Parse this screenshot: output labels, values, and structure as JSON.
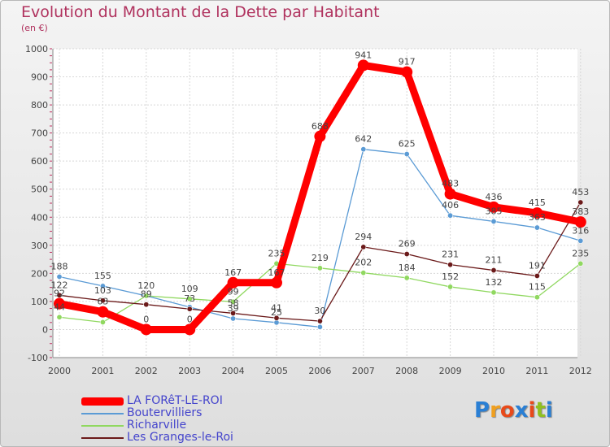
{
  "chart_data": {
    "type": "line",
    "title": "Evolution du Montant de la Dette par Habitant",
    "subtitle": "(en €)",
    "xlabel": "",
    "ylabel": "",
    "categories": [
      "2000",
      "2001",
      "2002",
      "2003",
      "2004",
      "2005",
      "2006",
      "2007",
      "2008",
      "2009",
      "2010",
      "2011",
      "2012"
    ],
    "ylim": [
      -100,
      1000
    ],
    "yticks": [
      "-100",
      "0",
      "100",
      "200",
      "300",
      "400",
      "500",
      "600",
      "700",
      "800",
      "900",
      "1000"
    ],
    "series": [
      {
        "name": "LA FORêT-LE-ROI",
        "color": "#ff0000",
        "values": [
          92,
          63,
          0,
          0,
          167,
          167,
          688,
          941,
          917,
          483,
          436,
          415,
          383
        ],
        "labels": [
          "92",
          "63",
          "0",
          "0",
          "167",
          "167",
          "688",
          "941",
          "917",
          "483",
          "436",
          "415",
          "383"
        ]
      },
      {
        "name": "Boutervilliers",
        "color": "#5b9bd5",
        "values": [
          188,
          155,
          120,
          80,
          39,
          25,
          9,
          642,
          625,
          406,
          385,
          363,
          316
        ],
        "labels": [
          "188",
          "155",
          "120",
          "",
          "39",
          "25",
          "",
          "642",
          "625",
          "406",
          "385",
          "363",
          "316"
        ]
      },
      {
        "name": "Richarville",
        "color": "#90d860",
        "values": [
          44,
          26,
          120,
          109,
          99,
          235,
          219,
          202,
          184,
          152,
          132,
          115,
          235
        ],
        "labels": [
          "44",
          "",
          "",
          "109",
          "99",
          "235",
          "219",
          "202",
          "184",
          "152",
          "132",
          "115",
          "235"
        ]
      },
      {
        "name": "Les Granges-le-Roi",
        "color": "#6b1a1a",
        "values": [
          122,
          103,
          89,
          73,
          58,
          41,
          30,
          294,
          269,
          231,
          211,
          191,
          453
        ],
        "labels": [
          "122",
          "103",
          "89",
          "73",
          "58",
          "41",
          "30",
          "294",
          "269",
          "231",
          "211",
          "191",
          "453"
        ]
      }
    ]
  },
  "brand": {
    "name": "Proxiti",
    "letters": [
      "P",
      "r",
      "o",
      "x",
      "i",
      "t",
      "i"
    ],
    "colors": [
      "#2a7fd4",
      "#f0a020",
      "#e84a1a",
      "#2a7fd4",
      "#e84a1a",
      "#90c020",
      "#2a7fd4"
    ]
  }
}
